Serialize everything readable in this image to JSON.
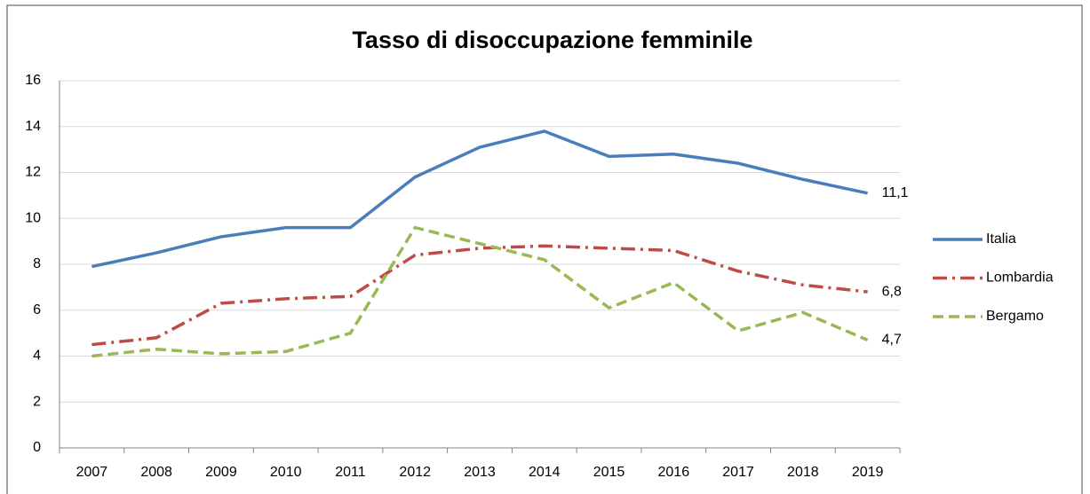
{
  "chart_data": {
    "type": "line",
    "title": "Tasso di disoccupazione femminile",
    "categories": [
      "2007",
      "2008",
      "2009",
      "2010",
      "2011",
      "2012",
      "2013",
      "2014",
      "2015",
      "2016",
      "2017",
      "2018",
      "2019"
    ],
    "series": [
      {
        "name": "Italia",
        "color": "#4a7ebb",
        "dash": "solid",
        "values": [
          7.9,
          8.5,
          9.2,
          9.6,
          9.6,
          11.8,
          13.1,
          13.8,
          12.7,
          12.8,
          12.4,
          11.7,
          11.1
        ],
        "value_labels": [
          null,
          null,
          null,
          null,
          null,
          null,
          null,
          null,
          null,
          null,
          null,
          null,
          "11,1"
        ]
      },
      {
        "name": "Lombardia",
        "color": "#be4b48",
        "dash": "dashdot",
        "values": [
          4.5,
          4.8,
          6.3,
          6.5,
          6.6,
          8.4,
          8.7,
          8.8,
          8.7,
          8.6,
          7.7,
          7.1,
          6.8
        ],
        "value_labels": [
          null,
          null,
          null,
          null,
          null,
          null,
          null,
          null,
          null,
          null,
          null,
          null,
          "6,8"
        ]
      },
      {
        "name": "Bergamo",
        "color": "#98b954",
        "dash": "dashed",
        "values": [
          4.0,
          4.3,
          4.1,
          4.2,
          5.0,
          9.6,
          8.9,
          8.2,
          6.1,
          7.2,
          5.1,
          5.9,
          4.7
        ],
        "value_labels": [
          null,
          null,
          null,
          null,
          null,
          null,
          null,
          null,
          null,
          null,
          null,
          null,
          "4,7"
        ]
      }
    ],
    "ylim": [
      0,
      16
    ],
    "yticks": [
      0,
      2,
      4,
      6,
      8,
      10,
      12,
      14,
      16
    ],
    "grid": true,
    "legend": "right"
  }
}
